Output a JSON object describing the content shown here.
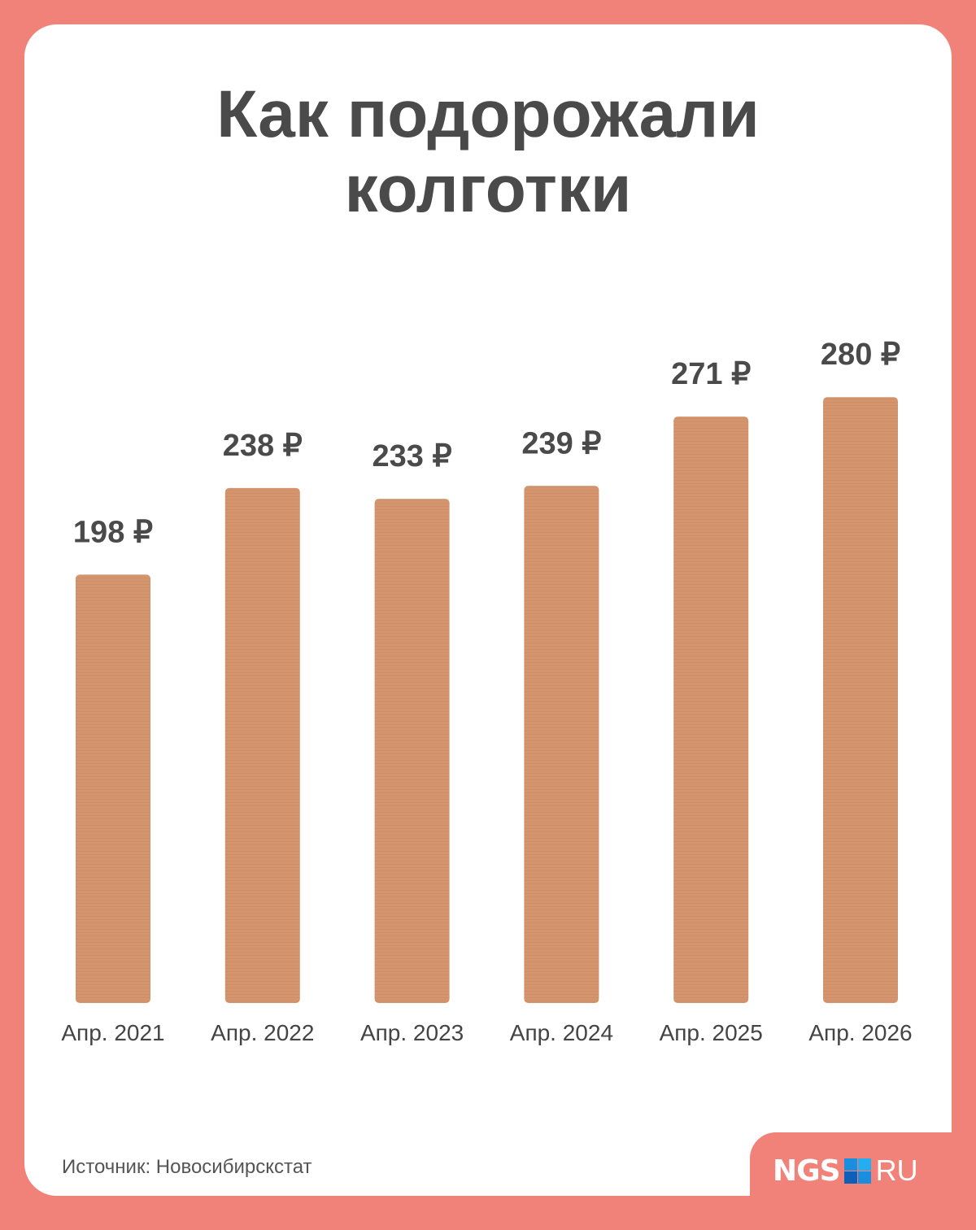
{
  "title_line1": "Как подорожали",
  "title_line2": "колготки",
  "source": "Источник: Новосибирскстат",
  "logo": {
    "left": "NGS",
    "right": "RU"
  },
  "colors": {
    "background": "#f08279",
    "bar": "#d4956d",
    "text": "#4a4a4a",
    "logo_blue": "#1a8fe0"
  },
  "chart_data": {
    "type": "bar",
    "categories": [
      "Апр. 2021",
      "Апр. 2022",
      "Апр. 2023",
      "Апр. 2024",
      "Апр. 2025",
      "Апр. 2026"
    ],
    "values": [
      198,
      238,
      233,
      239,
      271,
      280
    ],
    "data_labels": [
      "198 ₽",
      "238 ₽",
      "233 ₽",
      "239 ₽",
      "271 ₽",
      "280 ₽"
    ],
    "title": "Как подорожали колготки",
    "ylim": [
      0,
      280
    ],
    "grid": false
  }
}
